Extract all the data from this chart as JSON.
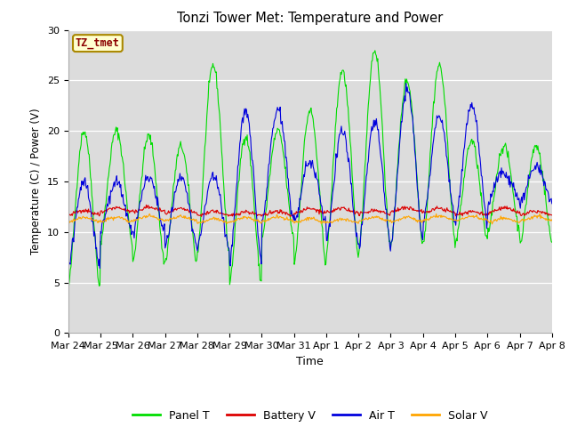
{
  "title": "Tonzi Tower Met: Temperature and Power",
  "xlabel": "Time",
  "ylabel": "Temperature (C) / Power (V)",
  "ylim": [
    0,
    30
  ],
  "yticks": [
    0,
    5,
    10,
    15,
    20,
    25,
    30
  ],
  "annotation_text": "TZ_tmet",
  "annotation_color": "#8B0000",
  "annotation_bg": "#FFFFD0",
  "plot_bg": "#DCDCDC",
  "fig_bg": "#FFFFFF",
  "colors": {
    "panel_t": "#00DD00",
    "battery_v": "#DD0000",
    "air_t": "#0000DD",
    "solar_v": "#FFA500"
  },
  "x_tick_labels": [
    "Mar 24",
    "Mar 25",
    "Mar 26",
    "Mar 27",
    "Mar 28",
    "Mar 29",
    "Mar 30",
    "Mar 31",
    "Apr 1",
    "Apr 2",
    "Apr 3",
    "Apr 4",
    "Apr 5",
    "Apr 6",
    "Apr 7",
    "Apr 8"
  ],
  "n_days": 15,
  "points_per_day": 48
}
